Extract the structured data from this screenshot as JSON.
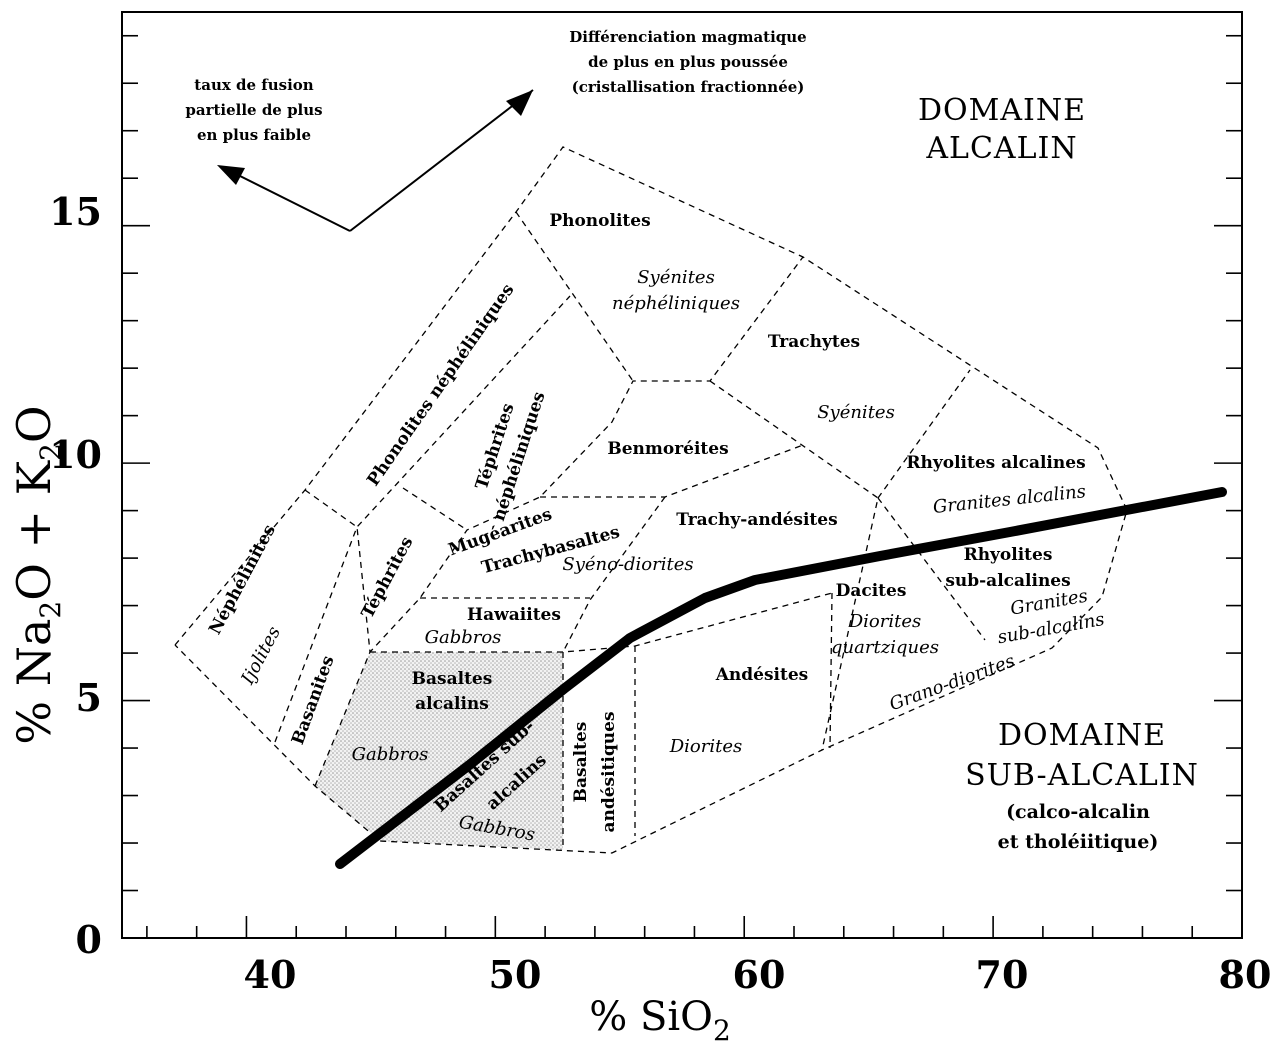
{
  "axes": {
    "y_label_prefix": "% Na",
    "y_label_sub1": "2",
    "y_label_mid": "O + K",
    "y_label_sub2": "2",
    "y_label_suffix": "O",
    "x_label_prefix": "% SiO",
    "x_label_sub": "2",
    "y_ticks": [
      "0",
      "5",
      "10",
      "15"
    ],
    "x_ticks": [
      "40",
      "50",
      "60",
      "70",
      "80"
    ],
    "x_range": [
      35,
      80
    ],
    "y_range": [
      0,
      19.5
    ]
  },
  "domains": {
    "alkaline_line1": "DOMAINE",
    "alkaline_line2": "ALCALIN",
    "subalkaline_line1": "DOMAINE",
    "subalkaline_line2": "SUB-ALCALIN",
    "subalkaline_line3": "(calco-alcalin",
    "subalkaline_line4": "et tholéiitique)"
  },
  "annotations": {
    "differentiation_line1": "Différenciation magmatique",
    "differentiation_line2": "de plus en plus poussée",
    "differentiation_line3": "(cristallisation fractionnée)",
    "fusion_line1": "taux de fusion",
    "fusion_line2": "partielle de plus",
    "fusion_line3": "en plus faible"
  },
  "fields": {
    "phonolites": "Phonolites",
    "syenites_nephel_1": "Syénites",
    "syenites_nephel_2": "néphéliniques",
    "trachytes": "Trachytes",
    "syenites": "Syénites",
    "phonolites_nephel": "Phonolites néphéliniques",
    "tephrites_nephel_1": "Téphrites",
    "tephrites_nephel_2": "néphéliniques",
    "benmoreites": "Benmoréites",
    "rhyolites_alcalines": "Rhyolites alcalines",
    "granites_alcalins": "Granites alcalins",
    "nephelinites": "Néphélinites",
    "ijolites": "Ijolites",
    "tephrites": "Téphrites",
    "mugearites": "Mugéarites",
    "trachybasaltes": "Trachybasaltes",
    "trachy_andesites": "Trachy-andésites",
    "syeno_diorites": "Syéno-diorites",
    "rhyolites_sub_1": "Rhyolites",
    "rhyolites_sub_2": "sub-alcalines",
    "granites_sub_1": "Granites",
    "granites_sub_2": "sub-alcalins",
    "hawaiites": "Hawaiites",
    "gabbros_hawaiites": "Gabbros",
    "dacites": "Dacites",
    "diorites_quartz_1": "Diorites",
    "diorites_quartz_2": "quartziques",
    "basanites": "Basanites",
    "basaltes_alcalins_1": "Basaltes",
    "basaltes_alcalins_2": "alcalins",
    "gabbros_alk": "Gabbros",
    "basaltes_sub_1": "Basaltes sub-",
    "basaltes_sub_2": "alcalins",
    "gabbros_sub": "Gabbros",
    "basaltes_andes_1": "Basaltes",
    "basaltes_andes_2": "andésitiques",
    "andesites": "Andésites",
    "diorites": "Diorites",
    "grano_diorites": "Grano-diorites"
  },
  "colors": {
    "ink": "#000000",
    "shade": "#d8d8d8",
    "background": "#ffffff"
  }
}
